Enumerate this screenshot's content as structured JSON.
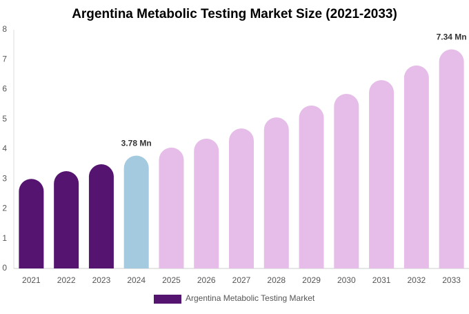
{
  "chart_data": {
    "type": "bar",
    "title": "Argentina Metabolic Testing Market Size (2021-2033)",
    "categories": [
      "2021",
      "2022",
      "2023",
      "2024",
      "2025",
      "2026",
      "2027",
      "2028",
      "2029",
      "2030",
      "2031",
      "2032",
      "2033"
    ],
    "series": [
      {
        "name": "Argentina Metabolic Testing Market",
        "color": "#541470",
        "colors": [
          "#541470",
          "#541470",
          "#541470",
          "#a4cadf",
          "#e6bde8",
          "#e6bde8",
          "#e6bde8",
          "#e6bde8",
          "#e6bde8",
          "#e6bde8",
          "#e6bde8",
          "#e6bde8",
          "#e6bde8"
        ],
        "values": [
          3.0,
          3.26,
          3.49,
          3.78,
          4.05,
          4.35,
          4.69,
          5.06,
          5.46,
          5.85,
          6.31,
          6.8,
          7.34
        ],
        "value_labels": [
          null,
          null,
          null,
          "3.78 Mn",
          null,
          null,
          null,
          null,
          null,
          null,
          null,
          null,
          "7.34 Mn"
        ]
      }
    ],
    "ylim": [
      0,
      8
    ],
    "yticks": [
      0,
      1,
      2,
      3,
      4,
      5,
      6,
      7,
      8
    ],
    "grid": false
  }
}
